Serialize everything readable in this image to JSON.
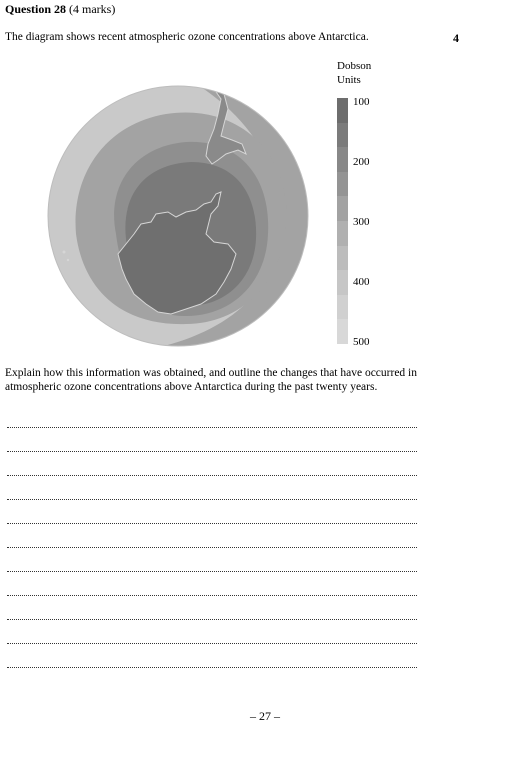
{
  "question": {
    "label": "Question 28",
    "marks_note": "(4 marks)",
    "stem": "The diagram shows recent atmospheric ozone concentrations above Antarctica.",
    "marks": "4",
    "prompt": "Explain how this information was obtained, and outline the changes that have occurred in atmospheric ozone concentrations above Antarctica during the past twenty years."
  },
  "legend": {
    "title_line1": "Dobson",
    "title_line2": "Units",
    "ticks": [
      "100",
      "200",
      "300",
      "400",
      "500"
    ],
    "colors": [
      "#6d6d6d",
      "#7b7b7b",
      "#888888",
      "#949494",
      "#a2a2a2",
      "#b0b0b0",
      "#bcbcbc",
      "#c6c6c6",
      "#d0d0d0",
      "#d8d8d8"
    ]
  },
  "diagram": {
    "colors": {
      "outer": "#c9c9c9",
      "ring": "#a3a3a3",
      "inner": "#8f8f8f",
      "hole": "#7a7a7a",
      "land": "#6f6f6f",
      "coast": "#d6d6d6"
    }
  },
  "answer_lines": 11,
  "footer": {
    "page_number": "– 27 –"
  }
}
